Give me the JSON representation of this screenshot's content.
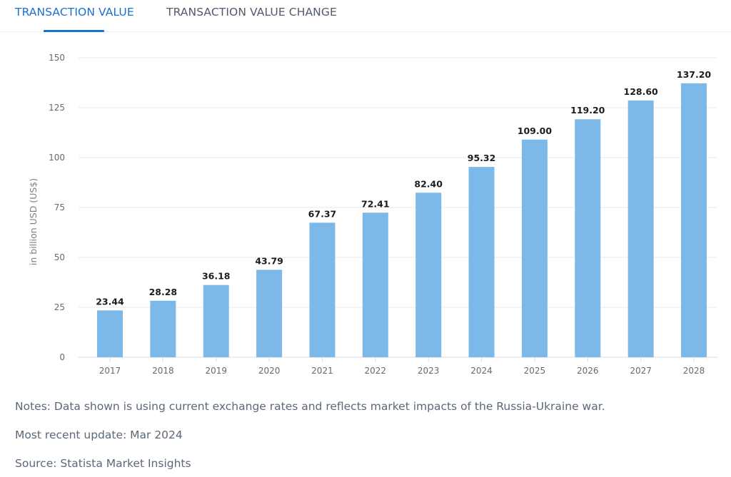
{
  "tabs": [
    {
      "label": "TRANSACTION VALUE",
      "active": true
    },
    {
      "label": "TRANSACTION VALUE CHANGE",
      "active": false
    }
  ],
  "colors": {
    "accent": "#1b6fd0",
    "bar": "#7db9e8",
    "grid": "#e6e9ee",
    "axis": "#d5dbe8"
  },
  "chart_data": {
    "type": "bar",
    "title": "",
    "xlabel": "",
    "ylabel": "in billion USD (US$)",
    "ylim": [
      0,
      150
    ],
    "yticks": [
      0,
      25,
      50,
      75,
      100,
      125,
      150
    ],
    "grid": true,
    "legend": "none",
    "categories": [
      "2017",
      "2018",
      "2019",
      "2020",
      "2021",
      "2022",
      "2023",
      "2024",
      "2025",
      "2026",
      "2027",
      "2028"
    ],
    "values": [
      23.44,
      28.28,
      36.18,
      43.79,
      67.37,
      72.41,
      82.4,
      95.32,
      109.0,
      119.2,
      128.6,
      137.2
    ],
    "value_labels": [
      "23.44",
      "28.28",
      "36.18",
      "43.79",
      "67.37",
      "72.41",
      "82.40",
      "95.32",
      "109.00",
      "119.20",
      "128.60",
      "137.20"
    ]
  },
  "footer": {
    "notes": "Notes: Data shown is using current exchange rates and reflects market impacts of the Russia-Ukraine war.",
    "update": "Most recent update: Mar 2024",
    "source": "Source: Statista Market Insights"
  }
}
